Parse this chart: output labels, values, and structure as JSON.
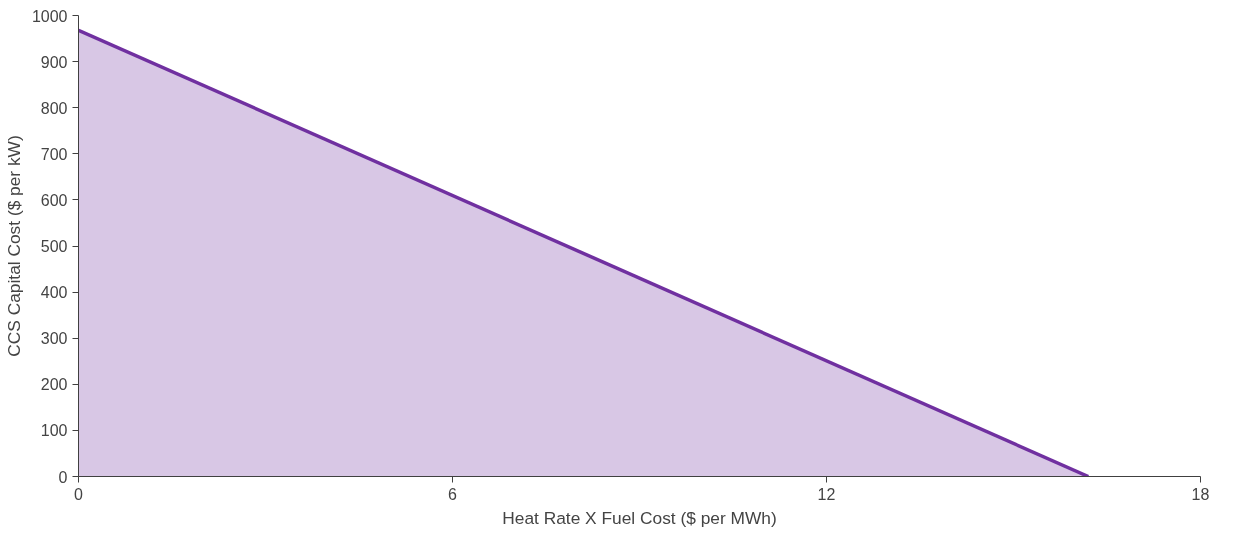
{
  "chart_data": {
    "type": "area",
    "xlabel": "Heat Rate X Fuel Cost ($ per MWh)",
    "ylabel": "CCS Capital Cost ($ per kW)",
    "x": [
      0,
      16.2
    ],
    "series": [
      {
        "color": "#7030a0",
        "values": [
          968,
          0
        ]
      }
    ],
    "xlim": [
      0,
      18
    ],
    "xticks": [
      0,
      6,
      12,
      18
    ],
    "ylim": [
      0,
      1000
    ],
    "yticks": [
      0,
      100,
      200,
      300,
      400,
      500,
      600,
      700,
      800,
      900,
      1000
    ],
    "grid": false,
    "marker": "none",
    "line_style": "solid"
  }
}
